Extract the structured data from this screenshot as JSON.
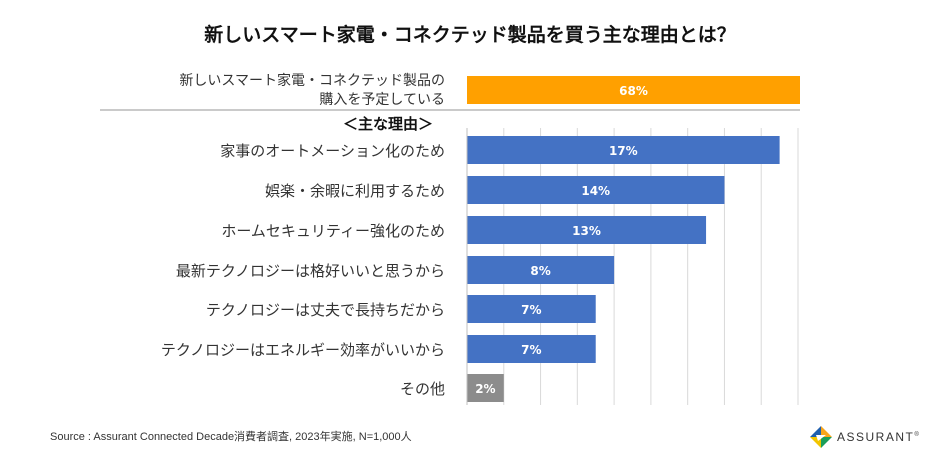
{
  "chart_data": {
    "type": "bar",
    "orientation": "horizontal",
    "title": "新しいスマート家電・コネクテッド製品を買う主な理由とは？",
    "headline": {
      "label_lines": [
        "新しいスマート家電・コネクテッド製品の",
        "購入を予定している"
      ],
      "value": 68,
      "value_label": "68%",
      "color": "#FFA000"
    },
    "section_label": "＜主な理由＞",
    "categories": [
      "家事のオートメーション化のため",
      "娯楽・余暇に利用するため",
      "ホームセキュリティー強化のため",
      "最新テクノロジーは格好いいと思うから",
      "テクノロジーは丈夫で長持ちだから",
      "テクノロジーはエネルギー効率がいいから",
      "その他"
    ],
    "values": [
      17,
      14,
      13,
      8,
      7,
      7,
      2
    ],
    "value_labels": [
      "17%",
      "14%",
      "13%",
      "8%",
      "7%",
      "7%",
      "2%"
    ],
    "colors": [
      "#4472C4",
      "#4472C4",
      "#4472C4",
      "#4472C4",
      "#4472C4",
      "#4472C4",
      "#8C8C8C"
    ],
    "xlim": [
      0,
      18
    ],
    "grid": true,
    "xlabel": "",
    "ylabel": ""
  },
  "source": "Source : Assurant Connected Decade消費者調査, 2023年実施, N=1,000人",
  "logo": {
    "text": "ASSURANT",
    "mark": "®"
  }
}
